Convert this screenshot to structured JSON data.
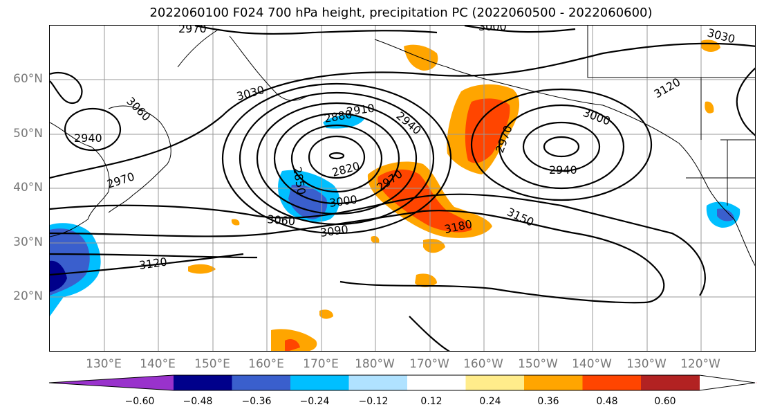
{
  "title": "2022060100 F024 700 hPa height, precipitation PC (2022060500 - 2022060600)",
  "lat_labels": [
    "60°N",
    "50°N",
    "40°N",
    "30°N",
    "20°N"
  ],
  "lon_labels": [
    "130°E",
    "140°E",
    "150°E",
    "160°E",
    "170°E",
    "180°W",
    "170°W",
    "160°W",
    "150°W",
    "140°W",
    "130°W",
    "120°W"
  ],
  "colorbar": {
    "colors": [
      "#9932cc",
      "#00008b",
      "#3a5fcd",
      "#00bfff",
      "#b0e2ff",
      "#ffffff",
      "#ffec8b",
      "#ffa500",
      "#ff4500",
      "#b22222",
      "#ff82ab"
    ],
    "ticks": [
      "−0.60",
      "−0.48",
      "−0.36",
      "−0.24",
      "−0.12",
      "0.12",
      "0.24",
      "0.36",
      "0.48",
      "0.60"
    ]
  },
  "contour_labels": [
    "2970",
    "3000",
    "3030",
    "3060",
    "2940",
    "2970",
    "3030",
    "2880",
    "2910",
    "2940",
    "3000",
    "2850",
    "2820",
    "3000",
    "2970",
    "2970",
    "2940",
    "3060",
    "3090",
    "3150",
    "3120",
    "3180",
    "3120",
    "3030"
  ]
}
